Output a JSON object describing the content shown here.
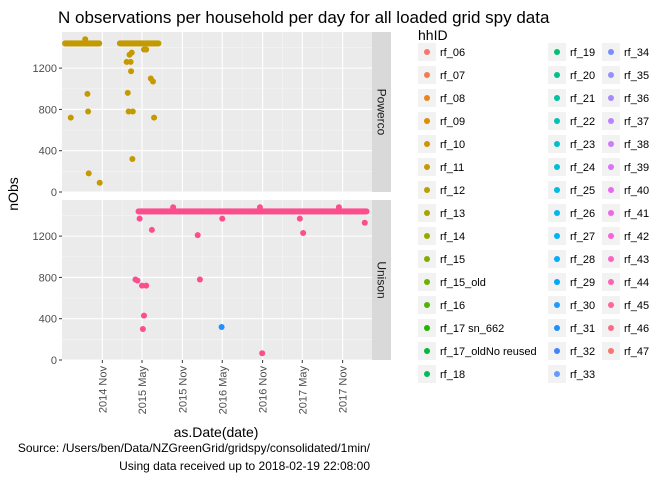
{
  "chart_data": {
    "type": "scatter",
    "title": "N observations per household per day for all loaded grid spy data",
    "xlabel": "as.Date(date)",
    "ylabel": "nObs",
    "x_ticks": [
      {
        "date": "2014-11-01",
        "label": "2014 Nov"
      },
      {
        "date": "2015-05-01",
        "label": "2015 May"
      },
      {
        "date": "2015-11-01",
        "label": "2015 Nov"
      },
      {
        "date": "2016-05-01",
        "label": "2016 May"
      },
      {
        "date": "2016-11-01",
        "label": "2016 Nov"
      },
      {
        "date": "2017-05-01",
        "label": "2017 May"
      },
      {
        "date": "2017-11-01",
        "label": "2017 Nov"
      }
    ],
    "xlim": [
      "2014-05-01",
      "2018-03-15"
    ],
    "ylim": [
      0,
      1550
    ],
    "y_ticks": [
      0,
      400,
      800,
      1200
    ],
    "grid": true,
    "facets": [
      {
        "label": "Powerco",
        "points": [
          {
            "date": "2014-06-10",
            "y": 720,
            "color": "#c49a00"
          },
          {
            "date": "2014-08-25",
            "y": 950,
            "color": "#c49a00"
          },
          {
            "date": "2014-08-28",
            "y": 780,
            "color": "#c49a00"
          },
          {
            "date": "2014-08-31",
            "y": 180,
            "color": "#c49a00"
          },
          {
            "date": "2014-08-15",
            "y": 1480,
            "color": "#c49a00"
          },
          {
            "date": "2014-10-20",
            "y": 90,
            "color": "#c49a00"
          },
          {
            "date": "2015-02-20",
            "y": 1260,
            "color": "#c49a00"
          },
          {
            "date": "2015-02-25",
            "y": 960,
            "color": "#c49a00"
          },
          {
            "date": "2015-03-01",
            "y": 780,
            "color": "#c49a00"
          },
          {
            "date": "2015-03-05",
            "y": 1330,
            "color": "#c49a00"
          },
          {
            "date": "2015-03-10",
            "y": 1260,
            "color": "#c49a00"
          },
          {
            "date": "2015-03-12",
            "y": 1170,
            "color": "#c49a00"
          },
          {
            "date": "2015-03-15",
            "y": 1350,
            "color": "#c49a00"
          },
          {
            "date": "2015-03-18",
            "y": 320,
            "color": "#c49a00"
          },
          {
            "date": "2015-03-20",
            "y": 780,
            "color": "#c49a00"
          },
          {
            "date": "2015-05-10",
            "y": 1380,
            "color": "#c49a00"
          },
          {
            "date": "2015-05-20",
            "y": 1380,
            "color": "#c49a00"
          },
          {
            "date": "2015-06-10",
            "y": 1100,
            "color": "#c49a00"
          },
          {
            "date": "2015-06-20",
            "y": 1070,
            "color": "#c49a00"
          },
          {
            "date": "2015-06-25",
            "y": 720,
            "color": "#c49a00"
          }
        ],
        "bands": [
          {
            "start": "2014-05-15",
            "end": "2014-10-20",
            "y": 1440,
            "color": "#c49a00"
          },
          {
            "start": "2015-01-20",
            "end": "2015-07-15",
            "y": 1440,
            "color": "#c49a00"
          }
        ]
      },
      {
        "label": "Unison",
        "points": [
          {
            "date": "2015-04-01",
            "y": 780,
            "color": "#fc4e8c"
          },
          {
            "date": "2015-04-10",
            "y": 770,
            "color": "#fc4e8c"
          },
          {
            "date": "2015-04-20",
            "y": 1370,
            "color": "#fc4e8c"
          },
          {
            "date": "2015-05-01",
            "y": 720,
            "color": "#fc4e8c"
          },
          {
            "date": "2015-05-05",
            "y": 300,
            "color": "#fc4e8c"
          },
          {
            "date": "2015-05-10",
            "y": 430,
            "color": "#fc4e8c"
          },
          {
            "date": "2015-05-20",
            "y": 720,
            "color": "#fc4e8c"
          },
          {
            "date": "2015-06-15",
            "y": 1260,
            "color": "#fc4e8c"
          },
          {
            "date": "2015-09-20",
            "y": 1480,
            "color": "#fc4e8c"
          },
          {
            "date": "2016-01-10",
            "y": 1210,
            "color": "#fc4e8c"
          },
          {
            "date": "2016-01-20",
            "y": 780,
            "color": "#fc4e8c"
          },
          {
            "date": "2016-05-01",
            "y": 1370,
            "color": "#fc4e8c"
          },
          {
            "date": "2016-04-28",
            "y": 320,
            "color": "#1e90ff"
          },
          {
            "date": "2016-10-20",
            "y": 1480,
            "color": "#fc4e8c"
          },
          {
            "date": "2016-10-30",
            "y": 65,
            "color": "#fc4e8c"
          },
          {
            "date": "2017-04-20",
            "y": 1370,
            "color": "#fc4e8c"
          },
          {
            "date": "2017-05-05",
            "y": 1230,
            "color": "#fc4e8c"
          },
          {
            "date": "2017-10-15",
            "y": 1480,
            "color": "#fc4e8c"
          },
          {
            "date": "2018-02-10",
            "y": 1330,
            "color": "#fc4e8c"
          }
        ],
        "bands": [
          {
            "start": "2015-04-15",
            "end": "2018-02-19",
            "y": 1440,
            "color": "#fc4e8c"
          }
        ]
      }
    ],
    "legend": {
      "title": "hhID",
      "placement": "right",
      "entries": [
        {
          "name": "rf_06",
          "color": "#f8766d"
        },
        {
          "name": "rf_07",
          "color": "#f17d4f"
        },
        {
          "name": "rf_08",
          "color": "#e7851e"
        },
        {
          "name": "rf_09",
          "color": "#dc8d00"
        },
        {
          "name": "rf_10",
          "color": "#d09400"
        },
        {
          "name": "rf_11",
          "color": "#c49a00"
        },
        {
          "name": "rf_12",
          "color": "#b6a000"
        },
        {
          "name": "rf_13",
          "color": "#a6a400"
        },
        {
          "name": "rf_14",
          "color": "#95a900"
        },
        {
          "name": "rf_15",
          "color": "#82ad00"
        },
        {
          "name": "rf_15_old",
          "color": "#6bb100"
        },
        {
          "name": "rf_16",
          "color": "#4fb400"
        },
        {
          "name": "rf_17 sn_662",
          "color": "#20b700"
        },
        {
          "name": "rf_17_oldNo reused",
          "color": "#00ba38"
        },
        {
          "name": "rf_18",
          "color": "#00bc59"
        },
        {
          "name": "rf_19",
          "color": "#00be73"
        },
        {
          "name": "rf_20",
          "color": "#00c08b"
        },
        {
          "name": "rf_21",
          "color": "#00c1a0"
        },
        {
          "name": "rf_22",
          "color": "#00c1b3"
        },
        {
          "name": "rf_23",
          "color": "#00c0c5"
        },
        {
          "name": "rf_24",
          "color": "#00bed5"
        },
        {
          "name": "rf_25",
          "color": "#00bbe3"
        },
        {
          "name": "rf_26",
          "color": "#00b7ef"
        },
        {
          "name": "rf_27",
          "color": "#00b2f9"
        },
        {
          "name": "rf_28",
          "color": "#00acfc"
        },
        {
          "name": "rf_29",
          "color": "#00a5ff"
        },
        {
          "name": "rf_30",
          "color": "#1e9bff"
        },
        {
          "name": "rf_31",
          "color": "#1b90ff"
        },
        {
          "name": "rf_32",
          "color": "#3d85ff"
        },
        {
          "name": "rf_33",
          "color": "#619cff"
        },
        {
          "name": "rf_34",
          "color": "#7a8cff"
        },
        {
          "name": "rf_35",
          "color": "#9590ff"
        },
        {
          "name": "rf_36",
          "color": "#a58aff"
        },
        {
          "name": "rf_37",
          "color": "#b983ff"
        },
        {
          "name": "rf_38",
          "color": "#cb7cf9"
        },
        {
          "name": "rf_39",
          "color": "#dc71fa"
        },
        {
          "name": "rf_40",
          "color": "#e96af1"
        },
        {
          "name": "rf_41",
          "color": "#f365e6"
        },
        {
          "name": "rf_42",
          "color": "#fa62d6"
        },
        {
          "name": "rf_43",
          "color": "#ff61c5"
        },
        {
          "name": "rf_44",
          "color": "#ff62b1"
        },
        {
          "name": "rf_45",
          "color": "#ff659c"
        },
        {
          "name": "rf_46",
          "color": "#fd6a86"
        },
        {
          "name": "rf_47",
          "color": "#f8766d"
        }
      ]
    },
    "caption": [
      "Source: /Users/ben/Data/NZGreenGrid/gridspy/consolidated/1min/",
      "Using data received up to 2018-02-19 22:08:00"
    ]
  }
}
